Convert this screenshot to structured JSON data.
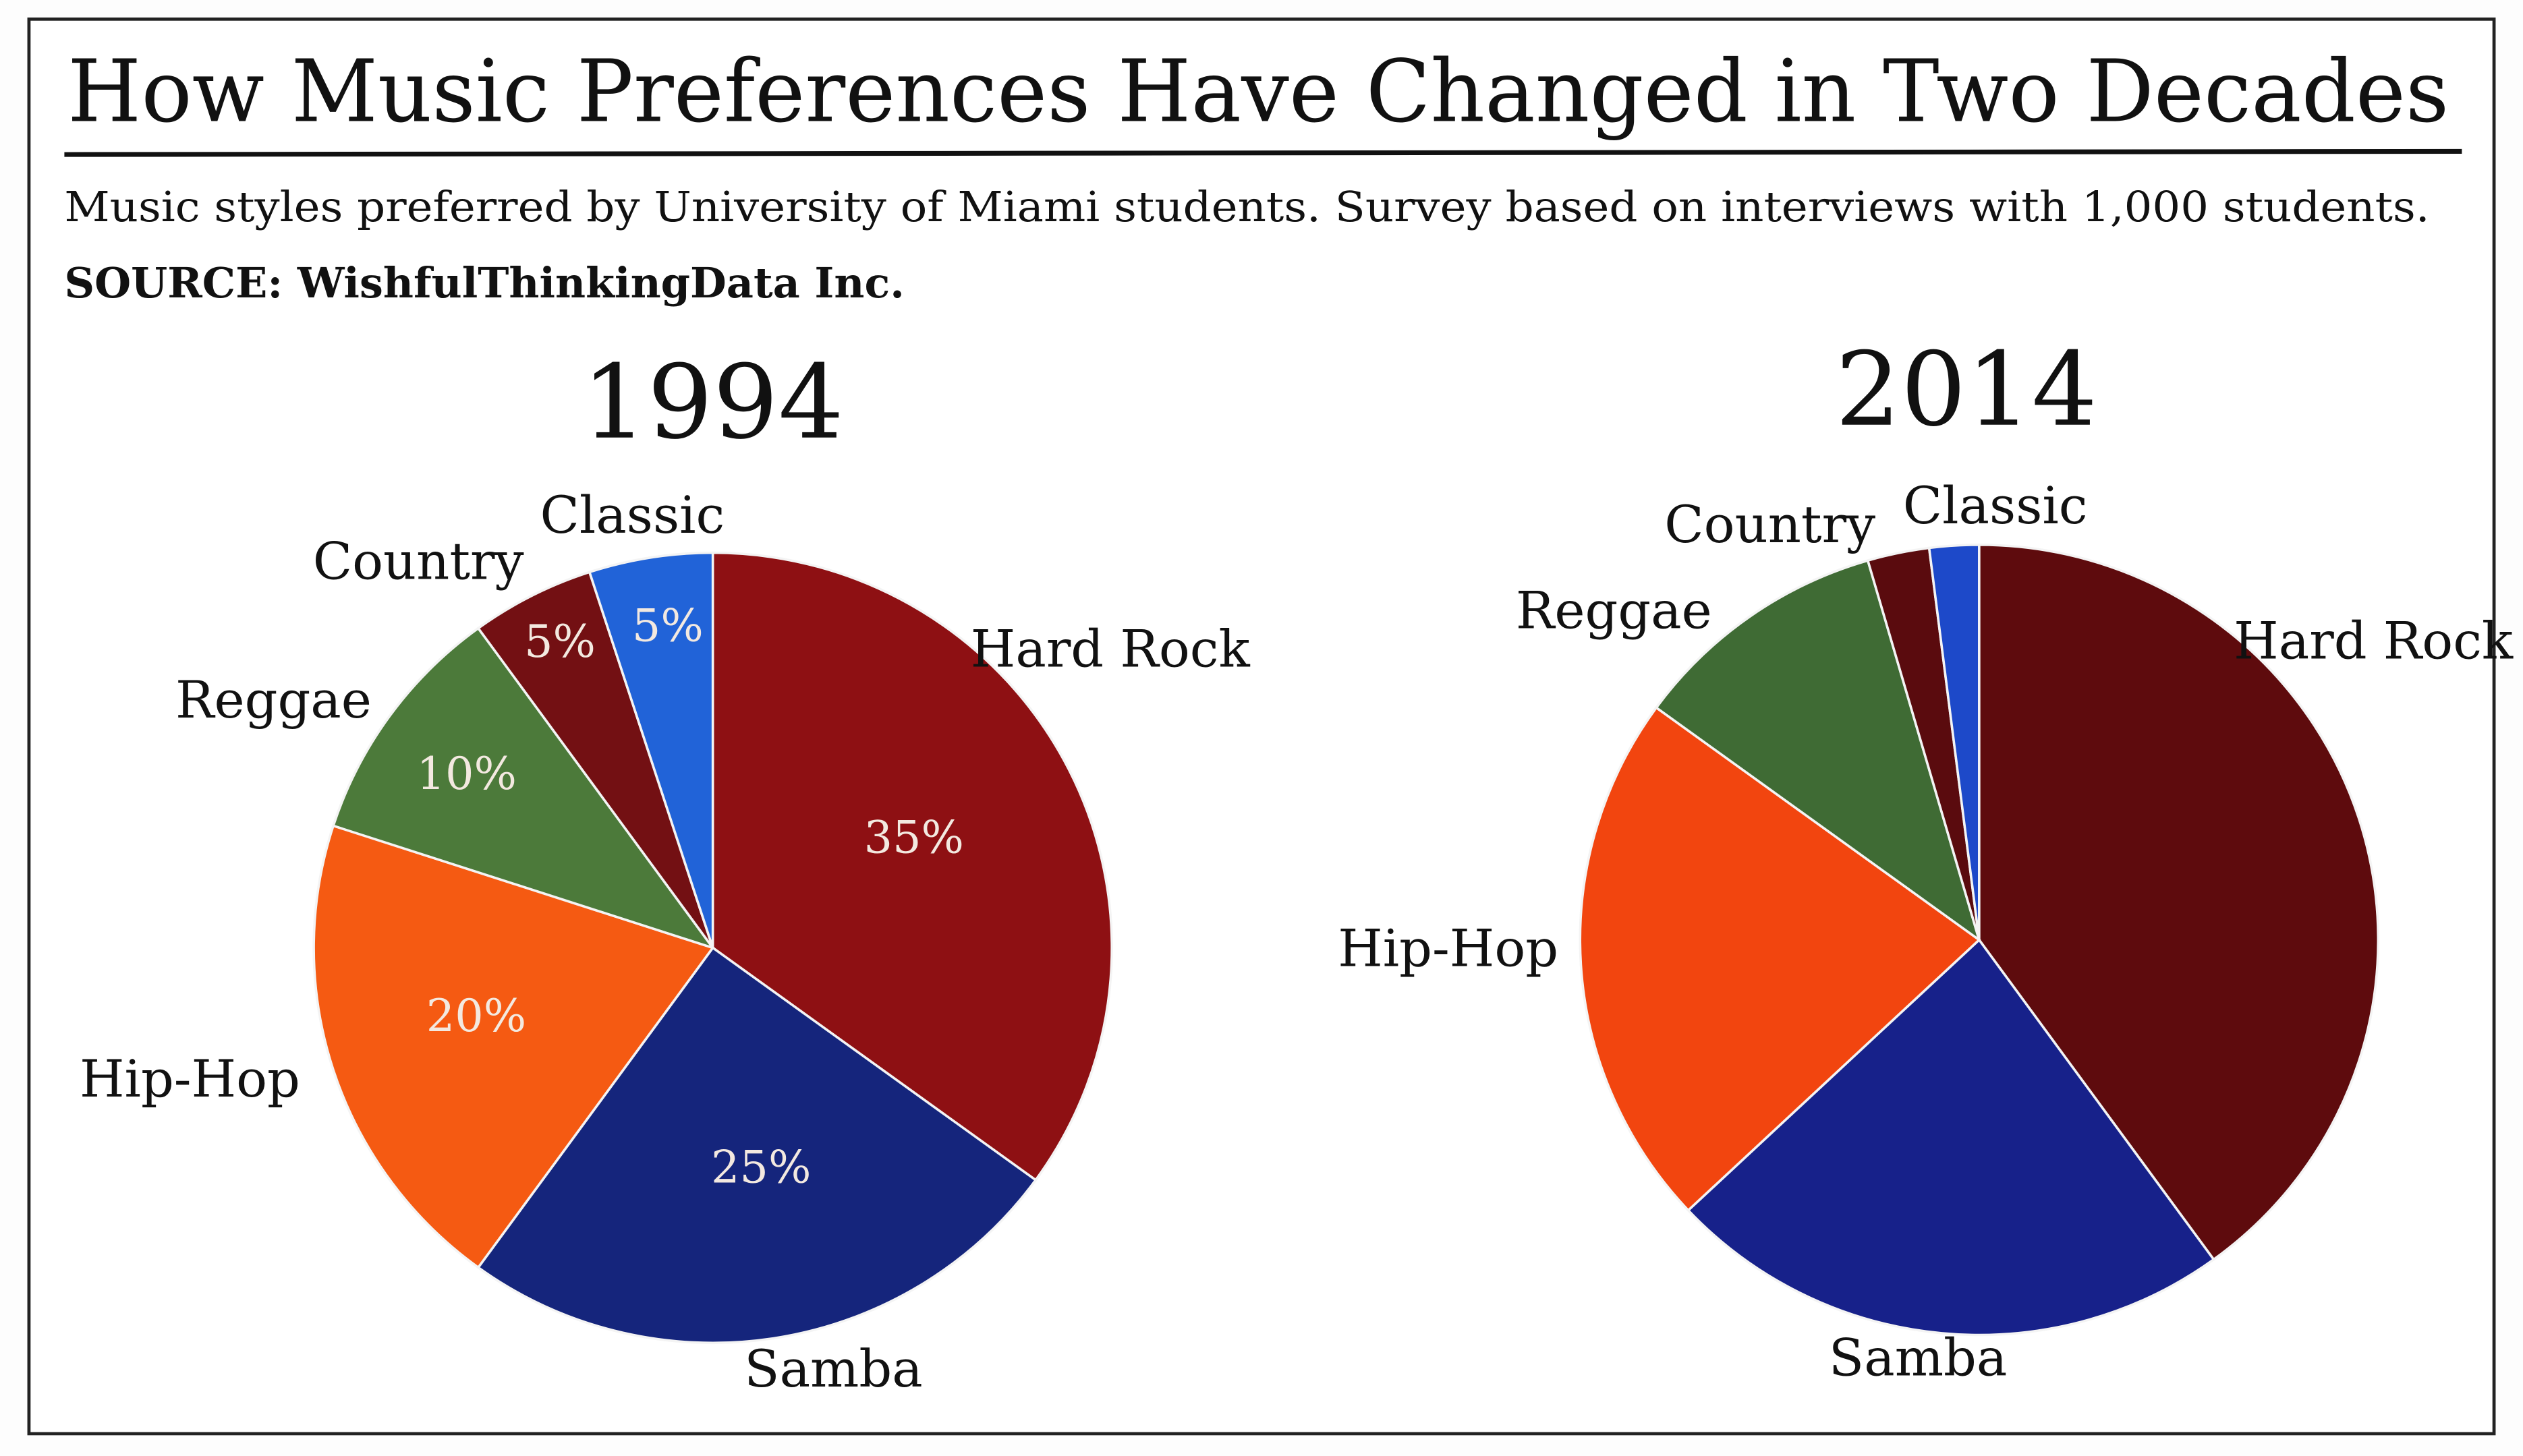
{
  "header": {
    "title": "How Music Preferences Have Changed in Two Decades",
    "subtitle": "Music styles preferred by University of Miami students. Survey based on interviews with 1,000 students.",
    "source": "SOURCE: WishfulThinkingData Inc."
  },
  "chart_data": [
    {
      "type": "pie",
      "title": "1994",
      "categories": [
        "Hard Rock",
        "Samba",
        "Hip-Hop",
        "Reggae",
        "Country",
        "Classic"
      ],
      "values": [
        35,
        25,
        20,
        10,
        5,
        5
      ],
      "value_labels": [
        "35%",
        "25%",
        "20%",
        "10%",
        "5%",
        "5%"
      ],
      "colors": [
        "#8e1013",
        "#15257c",
        "#f55a12",
        "#4c7a3a",
        "#731013",
        "#2163d8"
      ]
    },
    {
      "type": "pie",
      "title": "2014",
      "categories": [
        "Hard Rock",
        "Samba",
        "Hip-Hop",
        "Reggae",
        "Country",
        "Classic"
      ],
      "values": [
        40,
        23,
        22,
        10.5,
        2.5,
        2
      ],
      "colors": [
        "#5e0b0d",
        "#17218a",
        "#f2450f",
        "#3f6b34",
        "#5a0b0e",
        "#1d49c9"
      ]
    }
  ]
}
